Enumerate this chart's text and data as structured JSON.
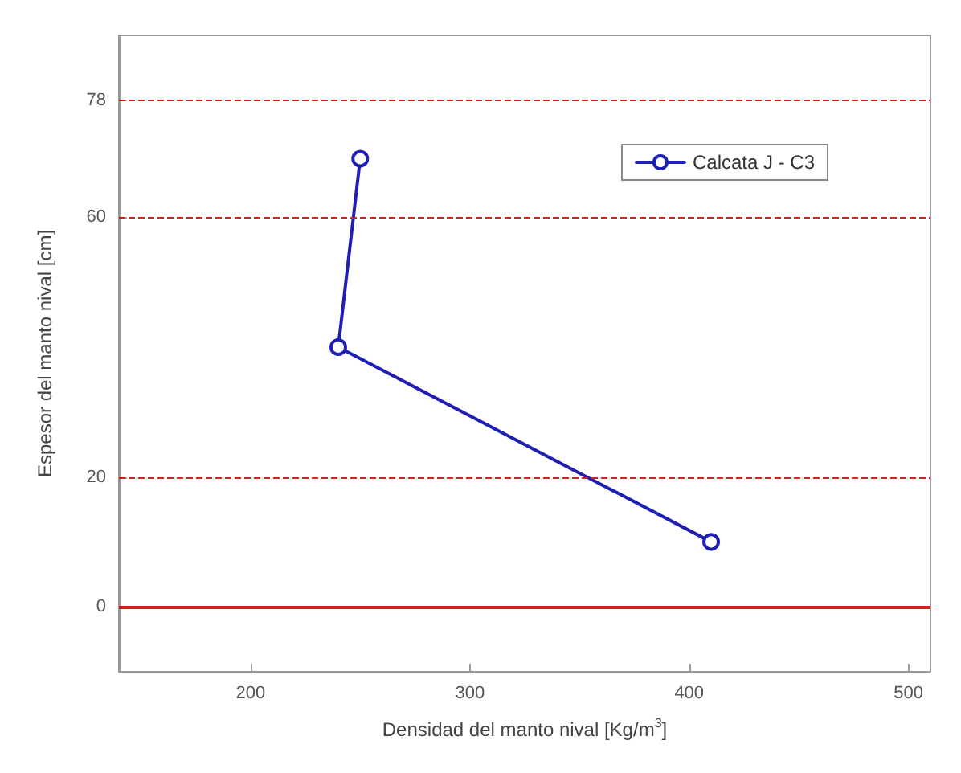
{
  "chart_data": {
    "type": "line",
    "xlabel": "Densidad del manto nival [Kg/m$^{3}$]",
    "ylabel": "Espesor del manto nival [cm]",
    "xlim": [
      140,
      510
    ],
    "xticks": [
      200,
      300,
      400,
      500
    ],
    "ylim": [
      -10,
      88
    ],
    "yticks": [
      0,
      20,
      60,
      78
    ],
    "series": [
      {
        "name": "Calcata J - C3",
        "color": "#1f1fb4",
        "x": [
          250,
          240,
          410
        ],
        "values": [
          69,
          40,
          10
        ]
      }
    ],
    "marker": "circle",
    "line_style": "solid",
    "legend": "top right",
    "grid": false,
    "ref_lines": [
      {
        "axis": "y",
        "value": 0,
        "color": "#d62020",
        "line_style": "solid"
      },
      {
        "axis": "y",
        "value": 20,
        "color": "#d62020",
        "line_style": "dashed"
      },
      {
        "axis": "y",
        "value": 60,
        "color": "#d62020",
        "line_style": "dashed"
      },
      {
        "axis": "y",
        "value": 78,
        "color": "#d62020",
        "line_style": "dashed"
      }
    ]
  }
}
